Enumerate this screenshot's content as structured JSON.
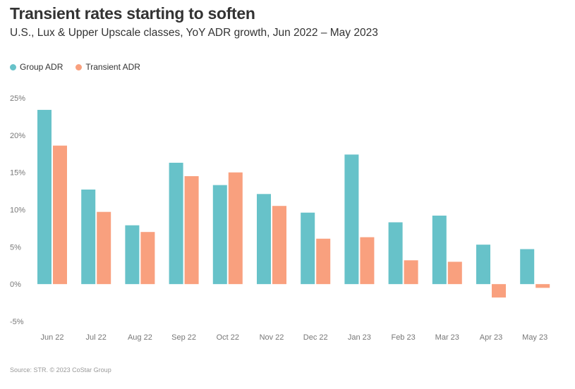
{
  "title": "Transient rates starting to soften",
  "subtitle": "U.S., Lux & Upper Upscale classes, YoY ADR growth, Jun 2022 – May 2023",
  "source": "Source: STR. © 2023 CoStar Group",
  "colors": {
    "group": "#67C2C9",
    "transient": "#F9A07E"
  },
  "chart_data": {
    "type": "bar",
    "categories": [
      "Jun 22",
      "Jul 22",
      "Aug 22",
      "Sep 22",
      "Oct 22",
      "Nov 22",
      "Dec 22",
      "Jan 23",
      "Feb 23",
      "Mar 23",
      "Apr 23",
      "May 23"
    ],
    "series": [
      {
        "name": "Group ADR",
        "values": [
          23.4,
          12.7,
          7.9,
          16.3,
          13.3,
          12.1,
          9.6,
          17.4,
          8.3,
          9.2,
          5.3,
          4.7
        ]
      },
      {
        "name": "Transient ADR",
        "values": [
          18.6,
          9.7,
          7.0,
          14.5,
          15.0,
          10.5,
          6.1,
          6.3,
          3.2,
          3.0,
          -1.8,
          -0.5
        ]
      }
    ],
    "ylim": [
      -5,
      25
    ],
    "yticks": [
      25,
      20,
      15,
      10,
      5,
      0,
      -5
    ],
    "ytick_labels": [
      "25%",
      "20%",
      "15%",
      "10%",
      "5%",
      "0%",
      "-5%"
    ],
    "legend": "top-left",
    "grid": false
  }
}
